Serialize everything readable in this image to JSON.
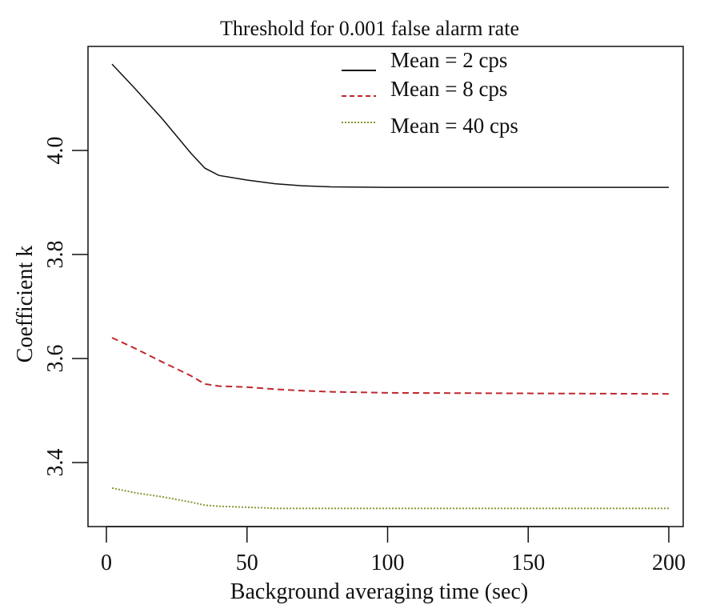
{
  "chart_data": {
    "type": "line",
    "title": "Threshold for 0.001 false alarm rate",
    "xlabel": "Background averaging time (sec)",
    "ylabel": "Coefficient k",
    "xlim": [
      0,
      200
    ],
    "ylim": [
      3.28,
      4.18
    ],
    "xticks": [
      0,
      50,
      100,
      150,
      200
    ],
    "yticks": [
      3.4,
      3.6,
      3.8,
      4.0
    ],
    "xtick_labels": [
      "0",
      "50",
      "100",
      "150",
      "200"
    ],
    "ytick_labels": [
      "3.4",
      "3.6",
      "3.8",
      "4.0"
    ],
    "grid": false,
    "legend_position": "top-center",
    "series": [
      {
        "name": "Mean = 2 cps",
        "color": "#111111",
        "style": "solid",
        "x": [
          2,
          10,
          20,
          30,
          35,
          40,
          50,
          60,
          70,
          80,
          100,
          150,
          200
        ],
        "y": [
          4.166,
          4.12,
          4.06,
          3.995,
          3.966,
          3.952,
          3.943,
          3.936,
          3.932,
          3.93,
          3.929,
          3.929,
          3.929
        ]
      },
      {
        "name": "Mean = 8 cps",
        "color": "#c0272d",
        "style": "dashed",
        "x": [
          2,
          10,
          20,
          30,
          35,
          40,
          50,
          60,
          70,
          80,
          100,
          150,
          200
        ],
        "y": [
          3.64,
          3.62,
          3.593,
          3.567,
          3.551,
          3.547,
          3.545,
          3.541,
          3.538,
          3.536,
          3.534,
          3.533,
          3.532
        ]
      },
      {
        "name": "Mean = 40 cps",
        "color": "#7f9a35",
        "style": "dotted",
        "x": [
          2,
          10,
          20,
          30,
          35,
          40,
          50,
          60,
          100,
          150,
          200
        ],
        "y": [
          3.351,
          3.342,
          3.334,
          3.324,
          3.318,
          3.316,
          3.314,
          3.312,
          3.312,
          3.312,
          3.312
        ]
      }
    ]
  }
}
